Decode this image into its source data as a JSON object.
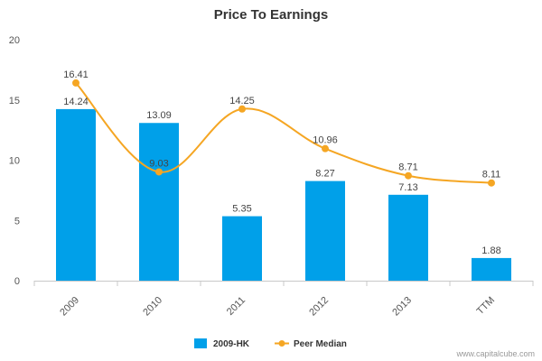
{
  "chart_data": {
    "type": "bar",
    "title": "Price To Earnings",
    "categories": [
      "2009",
      "2010",
      "2011",
      "2012",
      "2013",
      "TTM"
    ],
    "ylim": [
      0,
      20
    ],
    "yticks": [
      0,
      5,
      10,
      15,
      20
    ],
    "grid": false,
    "legend_position": "bottom",
    "series": [
      {
        "name": "2009-HK",
        "kind": "bar",
        "color": "#00A0E9",
        "values": [
          14.24,
          13.09,
          5.35,
          8.27,
          7.13,
          1.88
        ],
        "labels": [
          "14.24",
          "13.09",
          "5.35",
          "8.27",
          "7.13",
          "1.88"
        ]
      },
      {
        "name": "Peer Median",
        "kind": "line",
        "color": "#F5A623",
        "values": [
          16.41,
          9.03,
          14.25,
          10.96,
          8.71,
          8.11
        ],
        "labels": [
          "16.41",
          "9.03",
          "14.25",
          "10.96",
          "8.71",
          "8.11"
        ]
      }
    ]
  },
  "watermark": "www.capitalcube.com"
}
